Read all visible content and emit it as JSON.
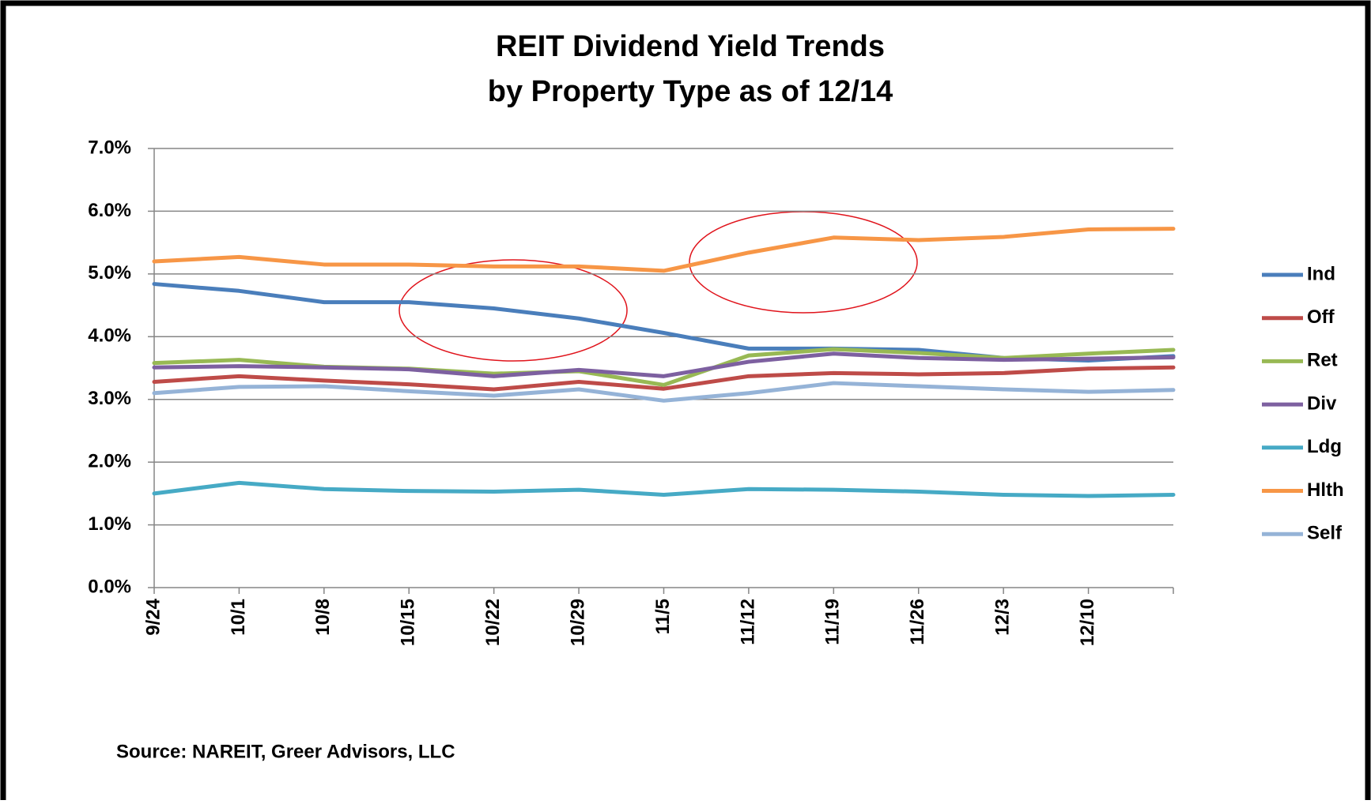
{
  "chart_data": {
    "type": "line",
    "title": [
      "REIT Dividend Yield Trends",
      "by Property Type as of 12/14"
    ],
    "source": "Source: NAREIT, Greer Advisors, LLC",
    "categories": [
      "9/24",
      "10/1",
      "10/8",
      "10/15",
      "10/22",
      "10/29",
      "11/5",
      "11/12",
      "11/19",
      "11/26",
      "12/3",
      "12/10",
      null
    ],
    "series": [
      {
        "name": "Ind",
        "color": "#4a7ebb",
        "values": [
          4.84,
          4.73,
          4.55,
          4.55,
          4.45,
          4.29,
          4.06,
          3.81,
          3.81,
          3.79,
          3.66,
          3.62,
          3.69
        ]
      },
      {
        "name": "Off",
        "color": "#be4b48",
        "values": [
          3.28,
          3.37,
          3.3,
          3.24,
          3.16,
          3.28,
          3.17,
          3.37,
          3.42,
          3.4,
          3.42,
          3.49,
          3.51
        ]
      },
      {
        "name": "Ret",
        "color": "#98b954",
        "values": [
          3.58,
          3.63,
          3.52,
          3.49,
          3.41,
          3.45,
          3.23,
          3.7,
          3.8,
          3.74,
          3.66,
          3.73,
          3.79
        ]
      },
      {
        "name": "Div",
        "color": "#7d60a0",
        "values": [
          3.51,
          3.53,
          3.51,
          3.48,
          3.37,
          3.47,
          3.37,
          3.6,
          3.73,
          3.66,
          3.63,
          3.65,
          3.67
        ]
      },
      {
        "name": "Ldg",
        "color": "#46aac5",
        "values": [
          1.5,
          1.67,
          1.57,
          1.54,
          1.53,
          1.56,
          1.48,
          1.57,
          1.56,
          1.53,
          1.48,
          1.46,
          1.48
        ]
      },
      {
        "name": "Hlth",
        "color": "#f79646",
        "values": [
          5.2,
          5.27,
          5.15,
          5.15,
          5.12,
          5.12,
          5.05,
          5.34,
          5.58,
          5.54,
          5.59,
          5.71,
          5.72
        ]
      },
      {
        "name": "Self",
        "color": "#95b3d7",
        "values": [
          3.1,
          3.2,
          3.21,
          3.13,
          3.06,
          3.16,
          2.98,
          3.1,
          3.26,
          3.21,
          3.16,
          3.12,
          3.15
        ]
      }
    ],
    "ylim": [
      0,
      7
    ],
    "yticks": [
      {
        "value": 0,
        "label": "0.0%"
      },
      {
        "value": 1,
        "label": "1.0%"
      },
      {
        "value": 2,
        "label": "2.0%"
      },
      {
        "value": 3,
        "label": "3.0%"
      },
      {
        "value": 4,
        "label": "4.0%"
      },
      {
        "value": 5,
        "label": "5.0%"
      },
      {
        "value": 6,
        "label": "6.0%"
      },
      {
        "value": 7,
        "label": "7.0%"
      }
    ],
    "grid": true,
    "legend": "right"
  }
}
